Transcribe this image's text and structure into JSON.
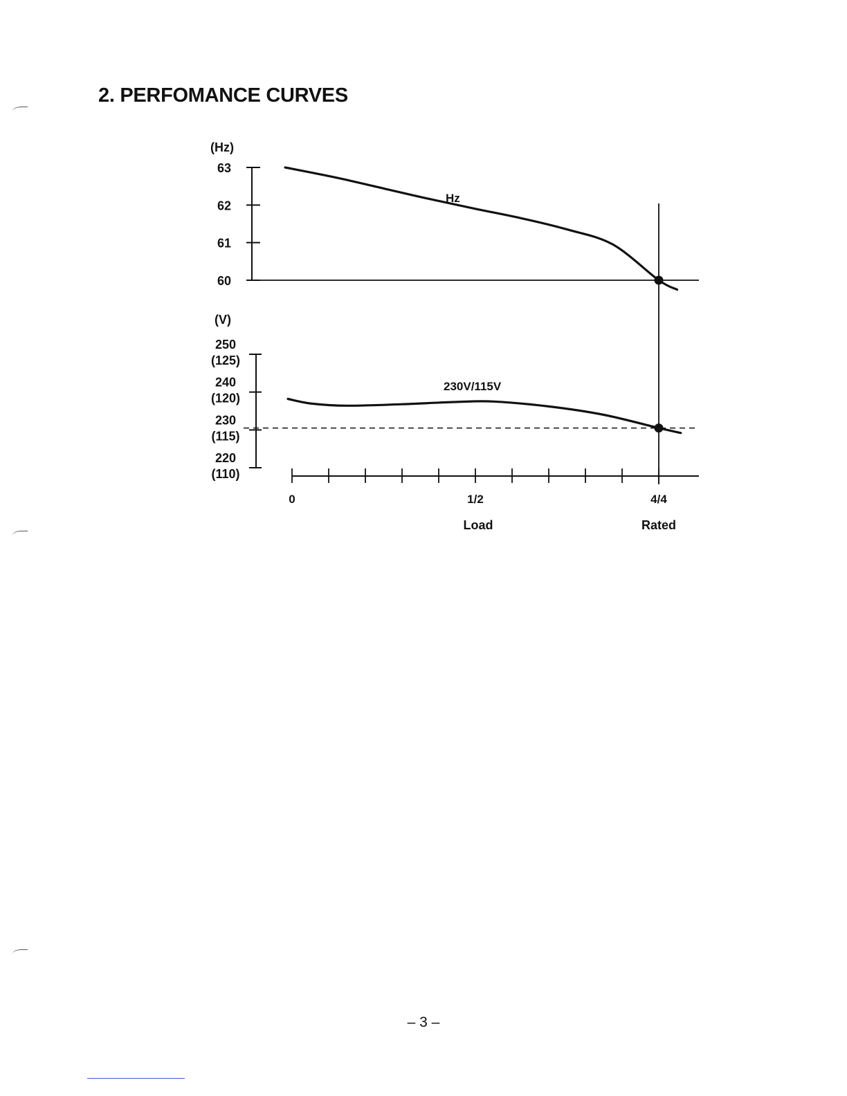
{
  "page": {
    "heading": "2. PERFOMANCE CURVES",
    "footer": "– 3 –"
  },
  "chart_data": [
    {
      "type": "line",
      "ylabel": "(Hz)",
      "ylim": [
        60,
        63
      ],
      "yticks": [
        "63",
        "62",
        "61",
        "60"
      ],
      "x": [
        0,
        0.125,
        0.25,
        0.375,
        0.5,
        0.625,
        0.75,
        0.875,
        1.0,
        1.05
      ],
      "series": [
        {
          "name": "Hz",
          "values": [
            63.0,
            62.72,
            62.44,
            62.16,
            61.9,
            61.65,
            61.35,
            60.95,
            60.0,
            59.75
          ]
        }
      ],
      "reference": {
        "y": 60,
        "style": "solid"
      },
      "marker": {
        "x": 1.0,
        "y": 60
      }
    },
    {
      "type": "line",
      "ylabel": "(V)",
      "ylim": [
        220,
        250
      ],
      "yticks": [
        {
          "primary": "250",
          "secondary": "(125)"
        },
        {
          "primary": "240",
          "secondary": "(120)"
        },
        {
          "primary": "230",
          "secondary": "(115)"
        },
        {
          "primary": "220",
          "secondary": "(110)"
        }
      ],
      "x": [
        0,
        0.05,
        0.15,
        0.3,
        0.45,
        0.55,
        0.7,
        0.85,
        1.0,
        1.06
      ],
      "series": [
        {
          "name": "230V/115V",
          "values": [
            238.2,
            237.0,
            236.4,
            236.8,
            237.4,
            237.5,
            236.2,
            234.0,
            230.5,
            229.2
          ]
        }
      ],
      "reference": {
        "y": 230.5,
        "style": "dashed"
      },
      "marker": {
        "x": 1.0,
        "y": 230.5
      },
      "xlim": [
        0,
        1
      ],
      "xticks": [
        0,
        0.1,
        0.2,
        0.3,
        0.4,
        0.5,
        0.6,
        0.7,
        0.8,
        0.9,
        1.0
      ],
      "xticklabels": [
        {
          "x": 0,
          "label": "0"
        },
        {
          "x": 0.5,
          "label": "1/2"
        },
        {
          "x": 1.0,
          "label": "4/4"
        }
      ],
      "xlabel": "Load",
      "xlabel2": "Rated"
    }
  ]
}
